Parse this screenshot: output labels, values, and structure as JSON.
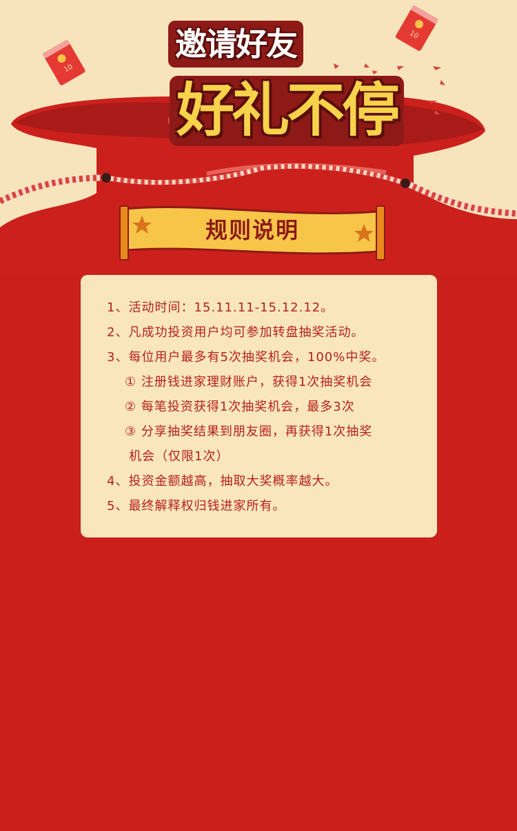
{
  "hero": {
    "title_line1": "邀请好友",
    "title_line2": "好礼不停",
    "envelope_label": "10"
  },
  "banner": {
    "title": "规则说明"
  },
  "rules": [
    "1、活动时间：15.11.11-15.12.12。",
    "2、凡成功投资用户均可参加转盘抽奖活动。",
    "3、每位用户最多有5次抽奖机会，100%中奖。",
    "① 注册钱进家理财账户，获得1次抽奖机会",
    "② 每笔投资获得1次抽奖机会，最多3次",
    "③ 分享抽奖结果到朋友圈，再获得1次抽奖",
    "机会（仅限1次）",
    "4、投资金额越高，抽取大奖概率越大。",
    "5、最终解释权归钱进家所有。"
  ],
  "colors": {
    "background_red": "#ca1f1b",
    "cream": "#fae6bd",
    "gold": "#f7c548",
    "text_red": "#b5211c"
  }
}
